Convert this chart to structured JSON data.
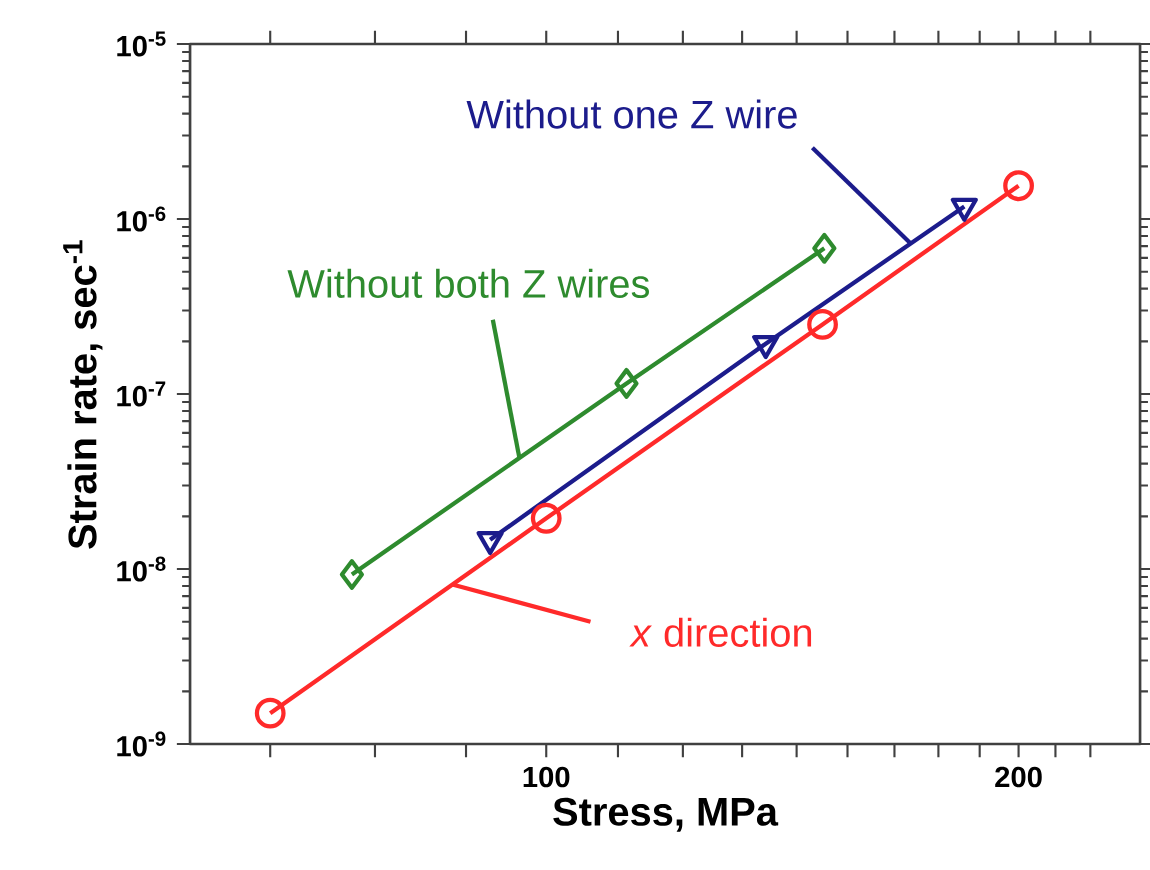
{
  "chart_data": {
    "type": "line",
    "xlabel": "Stress, MPa",
    "ylabel": "Strain rate, sec$^{-1}$",
    "log": "xy",
    "xlim": [
      59.3,
      239
    ],
    "ylim": [
      1e-09,
      1e-05
    ],
    "xticks": [
      {
        "value": 66.7,
        "label": null
      },
      {
        "value": 77.8,
        "label": null
      },
      {
        "value": 88.9,
        "label": null
      },
      100,
      {
        "value": 111.1,
        "label": null
      },
      {
        "value": 122.2,
        "label": null
      },
      {
        "value": 133.3,
        "label": null
      },
      {
        "value": 144.4,
        "label": null
      },
      {
        "value": 155.6,
        "label": null
      },
      {
        "value": 166.7,
        "label": null
      },
      {
        "value": 177.8,
        "label": null
      },
      {
        "value": 188.9,
        "label": null
      },
      200,
      {
        "value": 211.1,
        "label": null
      },
      {
        "value": 222.2,
        "label": null
      }
    ],
    "yticks": [
      {
        "value": 1e-09,
        "label": "10$^{-9}$"
      },
      {
        "value": 1e-08,
        "label": "10$^{-8}$"
      },
      {
        "value": 1e-07,
        "label": "10$^{-7}$"
      },
      {
        "value": 1e-06,
        "label": "10$^{-6}$"
      },
      {
        "value": 1e-05,
        "label": "10$^{-5}$"
      }
    ],
    "grid": false,
    "line_style": "solid",
    "series": [
      {
        "name": "*x* direction",
        "color": "#ff2a2a",
        "marker": "circle",
        "x": [
          66.7,
          100,
          150,
          200
        ],
        "values": [
          1.5e-09,
          1.95e-08,
          2.5e-07,
          1.55e-06
        ]
      },
      {
        "name": "Without both Z wires",
        "color": "#2e8b2e",
        "marker": "diamond",
        "x": [
          75.2,
          112.5,
          150.4
        ],
        "values": [
          9.3e-09,
          1.15e-07,
          6.8e-07
        ]
      },
      {
        "name": "Without one Z wire",
        "color": "#1c1c8c",
        "marker": "triangle",
        "x": [
          92.1,
          138,
          184.7
        ],
        "values": [
          1.47e-08,
          1.94e-07,
          1.18e-06
        ]
      }
    ]
  }
}
